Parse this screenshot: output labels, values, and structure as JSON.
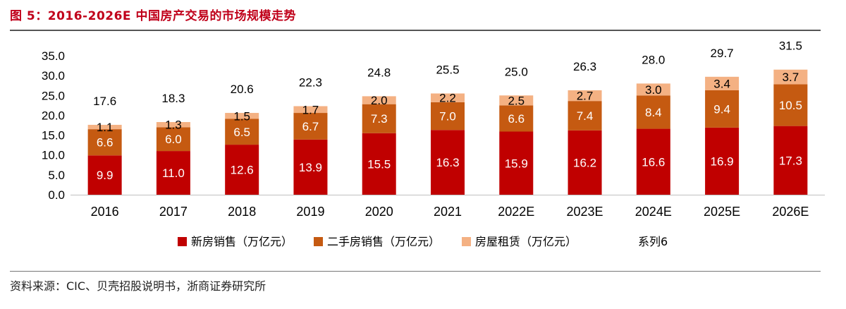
{
  "figure": {
    "title": "图 5：2016-2026E 中国房产交易的市场规模走势",
    "source": "资料来源：CIC、贝壳招股说明书，浙商证券研究所"
  },
  "chart_data": {
    "type": "bar",
    "stacked": true,
    "categories": [
      "2016",
      "2017",
      "2018",
      "2019",
      "2020",
      "2021",
      "2022E",
      "2023E",
      "2024E",
      "2025E",
      "2026E"
    ],
    "series": [
      {
        "name": "新房销售（万亿元）",
        "color": "#c00000",
        "label_color": "#ffffff",
        "values": [
          9.9,
          11.0,
          12.6,
          13.9,
          15.5,
          16.3,
          15.9,
          16.2,
          16.6,
          16.9,
          17.3
        ]
      },
      {
        "name": "二手房销售（万亿元）",
        "color": "#c55a11",
        "label_color": "#ffffff",
        "values": [
          6.6,
          6.0,
          6.5,
          6.7,
          7.3,
          7.0,
          6.6,
          7.4,
          8.4,
          9.4,
          10.5
        ]
      },
      {
        "name": "房屋租赁（万亿元）",
        "color": "#f4b183",
        "label_color": "#000000",
        "values": [
          1.1,
          1.3,
          1.5,
          1.7,
          2.0,
          2.2,
          2.5,
          2.7,
          3.0,
          3.4,
          3.7
        ]
      }
    ],
    "totals": {
      "name": "系列6",
      "values": [
        17.6,
        18.3,
        20.6,
        22.3,
        24.8,
        25.5,
        25.0,
        26.3,
        28.0,
        29.7,
        31.5
      ]
    },
    "yticks": [
      0.0,
      5.0,
      10.0,
      15.0,
      20.0,
      25.0,
      30.0,
      35.0
    ],
    "ylim": [
      0,
      35
    ],
    "legend_position": "bottom"
  }
}
